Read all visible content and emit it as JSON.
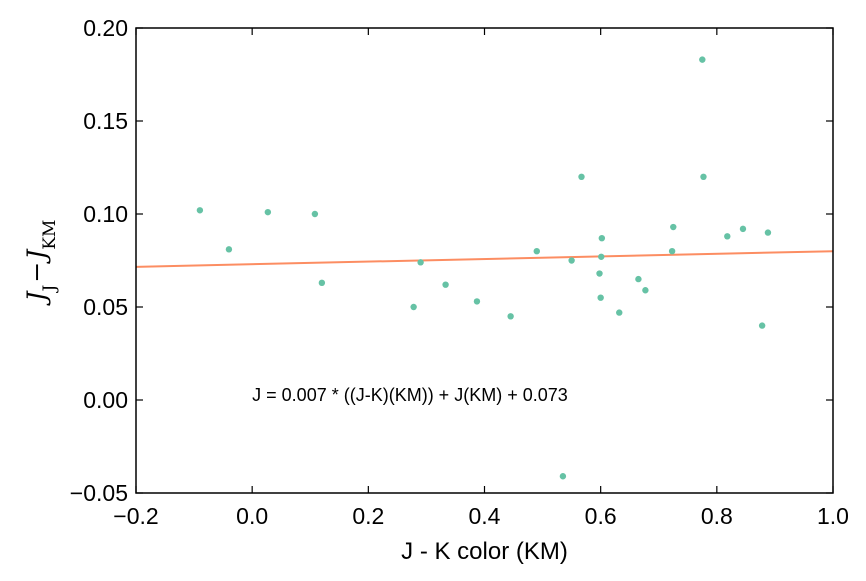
{
  "chart_data": {
    "type": "scatter",
    "xlabel": "J - K color (KM)",
    "ylabel_main": "J",
    "ylabel_sub1": "J",
    "ylabel_minus": "−",
    "ylabel_sub2": "KM",
    "xlim": [
      -0.2,
      1.0
    ],
    "ylim": [
      -0.05,
      0.2
    ],
    "xticks": [
      -0.2,
      0.0,
      0.2,
      0.4,
      0.6,
      0.8,
      1.0
    ],
    "xtick_labels": [
      "−0.2",
      "0.0",
      "0.2",
      "0.4",
      "0.6",
      "0.8",
      "1.0"
    ],
    "yticks": [
      -0.05,
      0.0,
      0.05,
      0.1,
      0.15,
      0.2
    ],
    "ytick_labels": [
      "−0.05",
      "0.00",
      "0.05",
      "0.10",
      "0.15",
      "0.20"
    ],
    "grid": false,
    "annotation": {
      "text": "J = 0.007 * ((J-K)(KM)) + J(KM) + 0.073",
      "x": 0.0,
      "y": 0.0
    },
    "fit_line": {
      "slope": 0.007,
      "intercept": 0.073,
      "color": "#fc8d62"
    },
    "point_color": "#66c2a5",
    "points": [
      {
        "x": -0.09,
        "y": 0.102
      },
      {
        "x": -0.04,
        "y": 0.081
      },
      {
        "x": 0.027,
        "y": 0.101
      },
      {
        "x": 0.108,
        "y": 0.1
      },
      {
        "x": 0.12,
        "y": 0.063
      },
      {
        "x": 0.278,
        "y": 0.05
      },
      {
        "x": 0.29,
        "y": 0.074
      },
      {
        "x": 0.333,
        "y": 0.062
      },
      {
        "x": 0.387,
        "y": 0.053
      },
      {
        "x": 0.445,
        "y": 0.045
      },
      {
        "x": 0.49,
        "y": 0.08
      },
      {
        "x": 0.535,
        "y": -0.041
      },
      {
        "x": 0.55,
        "y": 0.075
      },
      {
        "x": 0.567,
        "y": 0.12
      },
      {
        "x": 0.598,
        "y": 0.068
      },
      {
        "x": 0.6,
        "y": 0.055
      },
      {
        "x": 0.601,
        "y": 0.077
      },
      {
        "x": 0.602,
        "y": 0.087
      },
      {
        "x": 0.632,
        "y": 0.047
      },
      {
        "x": 0.665,
        "y": 0.065
      },
      {
        "x": 0.677,
        "y": 0.059
      },
      {
        "x": 0.723,
        "y": 0.08
      },
      {
        "x": 0.725,
        "y": 0.093
      },
      {
        "x": 0.775,
        "y": 0.183
      },
      {
        "x": 0.777,
        "y": 0.12
      },
      {
        "x": 0.818,
        "y": 0.088
      },
      {
        "x": 0.845,
        "y": 0.092
      },
      {
        "x": 0.878,
        "y": 0.04
      },
      {
        "x": 0.888,
        "y": 0.09
      }
    ]
  }
}
